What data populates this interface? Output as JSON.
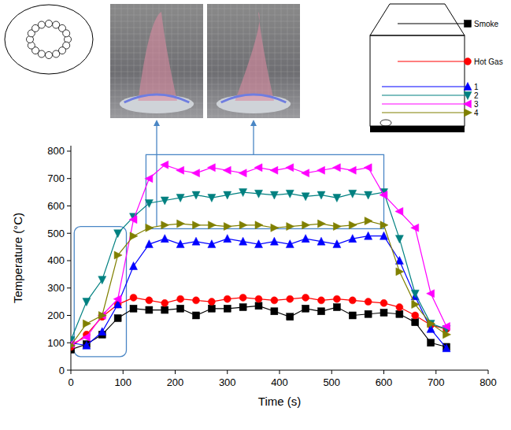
{
  "chart_data": {
    "type": "line",
    "x_label": "Time (s)",
    "y_label": "Temperature (°C)",
    "x": [
      0,
      30,
      60,
      90,
      120,
      150,
      180,
      210,
      240,
      270,
      300,
      330,
      360,
      390,
      420,
      450,
      480,
      510,
      540,
      570,
      600,
      630,
      660,
      690,
      720
    ],
    "series": [
      {
        "name": "Smoke",
        "color": "#000000",
        "marker": "square",
        "values": [
          75,
          95,
          130,
          190,
          225,
          220,
          220,
          225,
          200,
          225,
          225,
          230,
          235,
          215,
          195,
          225,
          215,
          230,
          200,
          205,
          210,
          205,
          175,
          100,
          85
        ]
      },
      {
        "name": "Hot Gas",
        "color": "#ff0000",
        "marker": "circle",
        "values": [
          85,
          130,
          195,
          240,
          265,
          255,
          245,
          260,
          255,
          250,
          260,
          265,
          260,
          255,
          260,
          265,
          255,
          260,
          255,
          250,
          245,
          230,
          200,
          165,
          150
        ]
      },
      {
        "name": "1",
        "color": "#0000ff",
        "marker": "triangle-up",
        "values": [
          100,
          90,
          140,
          240,
          380,
          460,
          480,
          460,
          470,
          460,
          480,
          470,
          460,
          470,
          460,
          480,
          470,
          460,
          480,
          490,
          490,
          400,
          270,
          150,
          80
        ]
      },
      {
        "name": "2",
        "color": "#008080",
        "marker": "triangle-down",
        "values": [
          110,
          250,
          330,
          500,
          560,
          610,
          620,
          630,
          640,
          630,
          640,
          650,
          645,
          640,
          645,
          635,
          640,
          630,
          645,
          640,
          650,
          480,
          280,
          170,
          150
        ]
      },
      {
        "name": "3",
        "color": "#ff00ff",
        "marker": "triangle-left",
        "values": [
          95,
          120,
          200,
          260,
          550,
          700,
          750,
          730,
          720,
          740,
          730,
          720,
          740,
          730,
          740,
          720,
          730,
          740,
          730,
          740,
          640,
          580,
          520,
          280,
          160
        ]
      },
      {
        "name": "4",
        "color": "#808000",
        "marker": "triangle-right",
        "values": [
          90,
          170,
          200,
          420,
          490,
          520,
          530,
          535,
          530,
          530,
          525,
          530,
          530,
          520,
          525,
          530,
          535,
          525,
          530,
          545,
          530,
          360,
          240,
          170,
          130
        ]
      }
    ],
    "xlim": [
      0,
      800
    ],
    "ylim": [
      0,
      820
    ],
    "xticks": [
      0,
      100,
      200,
      300,
      400,
      500,
      600,
      700,
      800
    ],
    "yticks": [
      0,
      100,
      200,
      300,
      400,
      500,
      600,
      700,
      800
    ],
    "grid": false,
    "legend": "top right"
  }
}
